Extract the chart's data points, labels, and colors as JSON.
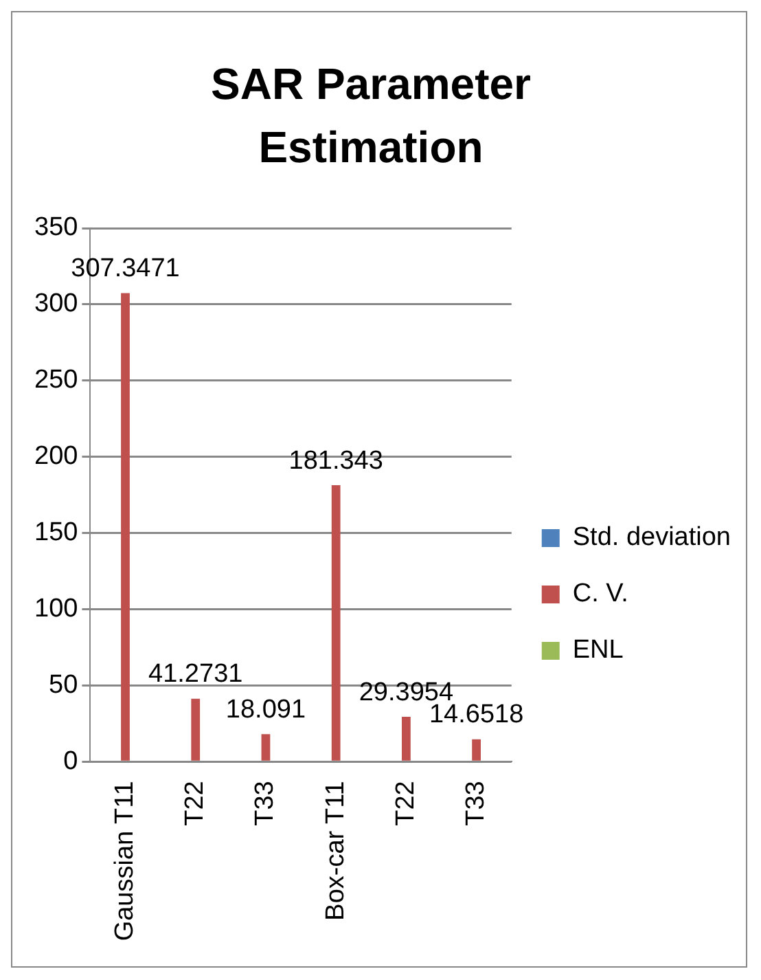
{
  "chart_data": {
    "type": "bar",
    "title": "SAR Parameter Estimation",
    "categories": [
      "Gaussian T11",
      "T22",
      "T33",
      "Box-car T11",
      "T22",
      "T33"
    ],
    "series": [
      {
        "name": "Std. deviation",
        "color": "#4f81bd",
        "values": [
          0,
          0,
          0,
          0,
          0,
          0
        ]
      },
      {
        "name": "C. V.",
        "color": "#c0504d",
        "values": [
          307.3471,
          41.2731,
          18.091,
          181.343,
          29.3954,
          14.6518
        ],
        "value_labels": [
          "307.3471",
          "41.2731",
          "18.091",
          "181.343",
          "29.3954",
          "14.6518"
        ]
      },
      {
        "name": "ENL",
        "color": "#9bbb59",
        "values": [
          0,
          0,
          0,
          0,
          0,
          0
        ]
      }
    ],
    "ylim": [
      0,
      350
    ],
    "yticks": [
      0,
      50,
      100,
      150,
      200,
      250,
      300,
      350
    ],
    "grid": "y",
    "legend": "right"
  }
}
